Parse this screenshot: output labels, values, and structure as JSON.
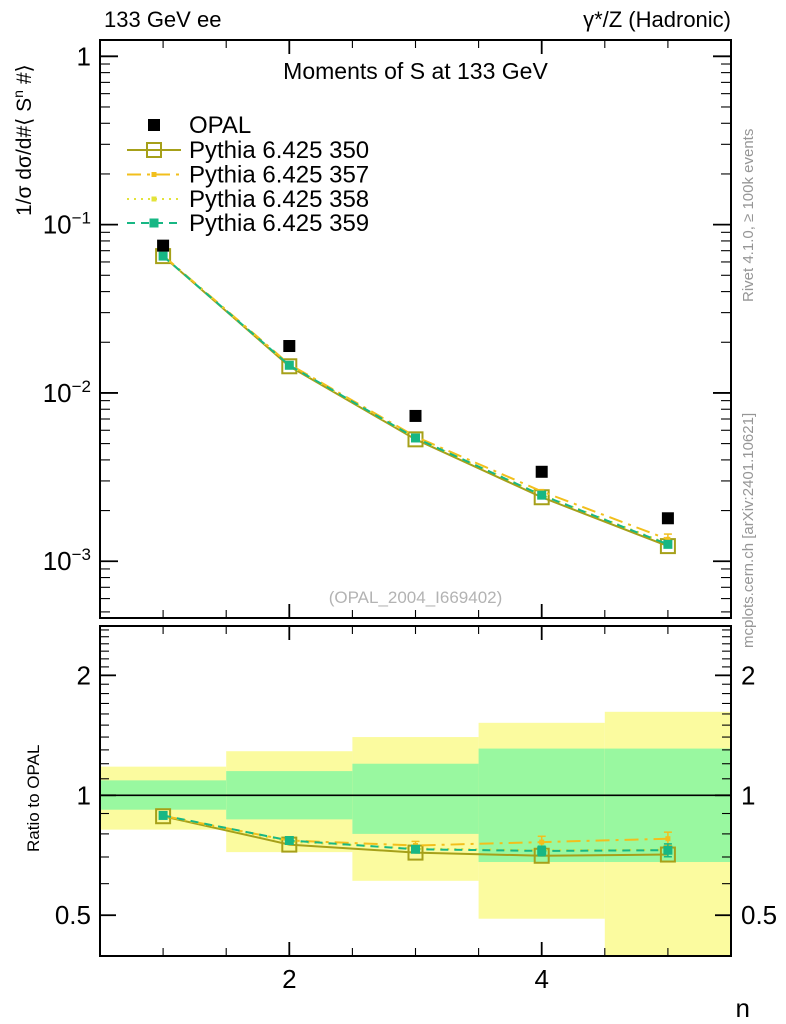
{
  "header": {
    "left": "133 GeV ee",
    "right": "γ*/Z (Hadronic)"
  },
  "side_notes": {
    "top": "Rivet 4.1.0, ≥ 100k events",
    "bottom": "mcplots.cern.ch [arXiv:2401.10621]",
    "color": "#969696"
  },
  "watermark": {
    "text": "(OPAL_2004_I669402)",
    "color": "#b3b3b3"
  },
  "axis_labels": {
    "y_main_prefix": "1/σ  dσ/d#⟨ S",
    "y_main_sup": "n",
    "y_main_suffix": " #⟩",
    "y_ratio": "Ratio to OPAL",
    "x": "n"
  },
  "chart_data": {
    "type": "line",
    "title": "Moments of S at 133 GeV",
    "xlabel": "n",
    "x": [
      1,
      2,
      3,
      4,
      5
    ],
    "xlim": [
      0.5,
      5.5
    ],
    "x_major_ticks": [
      2,
      4
    ],
    "x_minor_step": 0.5,
    "x_tick_labels": [
      "2",
      "4"
    ],
    "colors": {
      "frame": "#000000",
      "band_yellow": "#fbfb9f",
      "band_green": "#99f8a0",
      "unity_line": "#000000"
    },
    "main_panel": {
      "yscale": "log",
      "ylim": [
        0.00046,
        1.25
      ],
      "y_decade_exponents": [
        0,
        -1,
        -2,
        -3
      ],
      "grid": false
    },
    "ratio_panel": {
      "yscale": "log",
      "ylim": [
        0.395,
        2.66
      ],
      "unity": 1,
      "y_major": [
        0.5,
        1,
        2
      ],
      "y_major_labels": [
        "0.5",
        "1",
        "2"
      ],
      "y_minor": [
        0.6,
        0.7,
        0.8,
        0.9,
        1.1,
        1.2,
        1.3,
        1.4,
        1.5,
        1.6,
        1.7,
        1.8,
        1.9,
        2.1,
        2.2,
        2.3,
        2.4,
        2.5,
        2.6
      ],
      "bands": [
        {
          "n": 1,
          "yellow": [
            0.82,
            1.18
          ],
          "green": [
            0.92,
            1.09
          ]
        },
        {
          "n": 2,
          "yellow": [
            0.72,
            1.29
          ],
          "green": [
            0.87,
            1.15
          ]
        },
        {
          "n": 3,
          "yellow": [
            0.61,
            1.4
          ],
          "green": [
            0.8,
            1.2
          ]
        },
        {
          "n": 4,
          "yellow": [
            0.49,
            1.52
          ],
          "green": [
            0.68,
            1.31
          ]
        },
        {
          "n": 5,
          "yellow": [
            0.38,
            1.62
          ],
          "green": [
            0.68,
            1.31
          ]
        }
      ]
    },
    "series": [
      {
        "name": "OPAL",
        "kind": "data",
        "color": "#000000",
        "line": "none",
        "marker": "square-filled",
        "marker_size": 12,
        "values": [
          0.075,
          0.019,
          0.0073,
          0.0034,
          0.0018
        ]
      },
      {
        "name": "Pythia 6.425 350",
        "kind": "mc",
        "color": "#a6a019",
        "line": "solid",
        "marker": "square-open",
        "marker_size": 14,
        "values": [
          0.065,
          0.0144,
          0.0053,
          0.0024,
          0.00123
        ],
        "ratio": [
          0.886,
          0.752,
          0.718,
          0.705,
          0.71
        ],
        "ratio_err": [
          0,
          0,
          0,
          0,
          0
        ]
      },
      {
        "name": "Pythia 6.425 357",
        "kind": "mc",
        "color": "#f2bf1c",
        "line": "dashdot",
        "marker": "square-filled",
        "marker_size": 5,
        "values": [
          0.0655,
          0.0148,
          0.0055,
          0.0026,
          0.00135
        ],
        "value_err_last": 0.0001,
        "ratio": [
          0.888,
          0.77,
          0.748,
          0.763,
          0.778
        ],
        "ratio_err": [
          0,
          0,
          0.018,
          0.026,
          0.03
        ]
      },
      {
        "name": "Pythia 6.425 358",
        "kind": "mc",
        "color": "#e3e339",
        "line": "dotted",
        "marker": "square-filled",
        "marker_size": 5,
        "values": [
          0.065,
          0.0146,
          0.0054,
          0.00248,
          0.00127
        ],
        "ratio": [
          0.888,
          0.765,
          0.735,
          0.728,
          0.73
        ],
        "ratio_err": [
          0,
          0,
          0,
          0,
          0
        ]
      },
      {
        "name": "Pythia 6.425 359",
        "kind": "mc",
        "color": "#17b784",
        "line": "dashed",
        "marker": "square-filled",
        "marker_size": 9,
        "values": [
          0.065,
          0.0146,
          0.0054,
          0.00247,
          0.00126
        ],
        "ratio": [
          0.89,
          0.77,
          0.732,
          0.725,
          0.728
        ],
        "ratio_err": [
          0,
          0,
          0,
          0.02,
          0.027
        ]
      }
    ]
  }
}
